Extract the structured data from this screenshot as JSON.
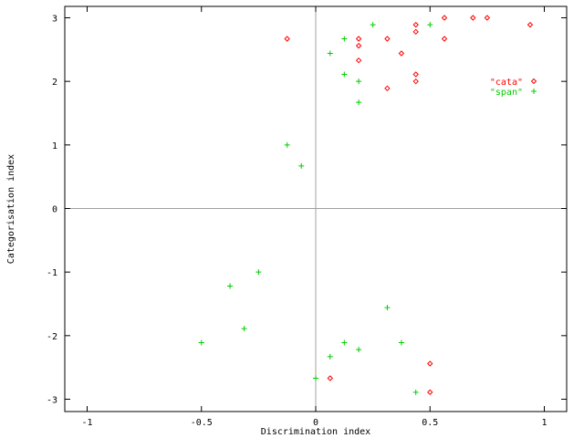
{
  "chart_data": {
    "type": "scatter",
    "xlabel": "Discrimination index",
    "ylabel": "Categorisation index",
    "xlim": [
      -1.1,
      1.1
    ],
    "ylim": [
      -3.2,
      3.15
    ],
    "xticks": [
      -1,
      -0.5,
      0,
      0.5,
      1
    ],
    "xtick_labels": [
      "-1",
      "-0.5",
      "0",
      "0.5",
      "1"
    ],
    "yticks": [
      -3,
      -2,
      -1,
      0,
      1,
      2,
      3
    ],
    "ytick_labels": [
      "-3",
      "-2",
      "-1",
      "0",
      "1",
      "2",
      "3"
    ],
    "grid": false,
    "zero_lines": true,
    "legend_position": "right",
    "series": [
      {
        "name": "\"cata\"",
        "marker": "diamond",
        "color": "#ff0000",
        "points": [
          [
            -0.125,
            2.67
          ],
          [
            0.188,
            2.67
          ],
          [
            0.188,
            2.56
          ],
          [
            0.188,
            2.33
          ],
          [
            0.313,
            2.67
          ],
          [
            0.375,
            2.44
          ],
          [
            0.438,
            2.89
          ],
          [
            0.438,
            2.78
          ],
          [
            0.563,
            3.0
          ],
          [
            0.563,
            2.67
          ],
          [
            0.688,
            3.0
          ],
          [
            0.75,
            3.0
          ],
          [
            0.938,
            2.89
          ],
          [
            0.438,
            2.11
          ],
          [
            0.438,
            2.0
          ],
          [
            0.313,
            1.89
          ],
          [
            0.063,
            -2.67
          ],
          [
            0.5,
            -2.44
          ],
          [
            0.5,
            -2.89
          ]
        ]
      },
      {
        "name": "\"span\"",
        "marker": "plus",
        "color": "#00cc00",
        "points": [
          [
            0.125,
            2.67
          ],
          [
            0.25,
            2.89
          ],
          [
            0.5,
            2.89
          ],
          [
            0.063,
            2.44
          ],
          [
            0.125,
            2.11
          ],
          [
            0.188,
            2.0
          ],
          [
            0.188,
            1.67
          ],
          [
            -0.125,
            1.0
          ],
          [
            -0.063,
            0.67
          ],
          [
            -0.25,
            -1.0
          ],
          [
            -0.375,
            -1.22
          ],
          [
            -0.313,
            -1.89
          ],
          [
            -0.5,
            -2.11
          ],
          [
            0.313,
            -1.56
          ],
          [
            0.375,
            -2.11
          ],
          [
            0.125,
            -2.11
          ],
          [
            0.188,
            -2.22
          ],
          [
            0.063,
            -2.33
          ],
          [
            0.0,
            -2.67
          ],
          [
            0.438,
            -2.89
          ]
        ]
      }
    ]
  }
}
